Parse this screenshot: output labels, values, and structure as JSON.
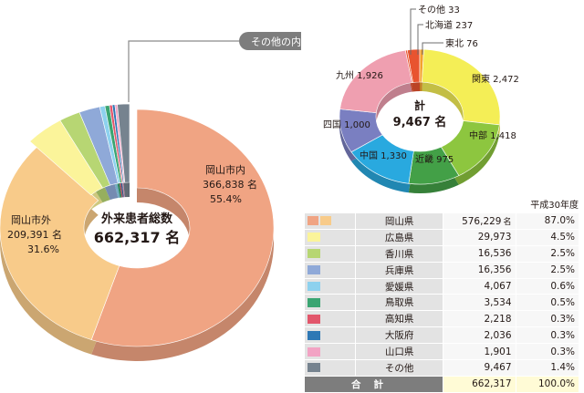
{
  "main_chart": {
    "center_title": "外来患者総数",
    "center_total": "662,317 名",
    "callout": "その他の内訳",
    "labels": [
      {
        "line1": "岡山市内",
        "line2": "366,838 名",
        "line3": "55.4%"
      },
      {
        "line1": "岡山市外",
        "line2": "209,391 名",
        "line3": "31.6%"
      }
    ]
  },
  "region_chart": {
    "center_title": "計",
    "center_total": "9,467 名",
    "labels": [
      "その他 33",
      "北海道 237",
      "東北 76",
      "関東 2,472",
      "中部 1,418",
      "近畿 975",
      "中国 1,330",
      "四国 1,000",
      "九州 1,926"
    ]
  },
  "table": {
    "year": "平成30年度",
    "rows": [
      {
        "name": "岡山県",
        "count": "576,229",
        "unit": "名",
        "pct": "87.0%"
      },
      {
        "name": "広島県",
        "count": "29,973",
        "unit": "",
        "pct": "4.5%"
      },
      {
        "name": "香川県",
        "count": "16,536",
        "unit": "",
        "pct": "2.5%"
      },
      {
        "name": "兵庫県",
        "count": "16,356",
        "unit": "",
        "pct": "2.5%"
      },
      {
        "name": "愛媛県",
        "count": "4,067",
        "unit": "",
        "pct": "0.6%"
      },
      {
        "name": "鳥取県",
        "count": "3,534",
        "unit": "",
        "pct": "0.5%"
      },
      {
        "name": "高知県",
        "count": "2,218",
        "unit": "",
        "pct": "0.3%"
      },
      {
        "name": "大阪府",
        "count": "2,036",
        "unit": "",
        "pct": "0.3%"
      },
      {
        "name": "山口県",
        "count": "1,901",
        "unit": "",
        "pct": "0.3%"
      },
      {
        "name": "その他",
        "count": "9,467",
        "unit": "",
        "pct": "1.4%"
      }
    ],
    "total_label": "合計",
    "total_count": "662,317",
    "total_pct": "100.0%"
  },
  "chart_data": [
    {
      "type": "pie",
      "title": "外来患者総数",
      "categories": [
        "岡山市内",
        "岡山市外",
        "広島県",
        "香川県",
        "兵庫県",
        "愛媛県",
        "鳥取県",
        "高知県",
        "大阪府",
        "山口県",
        "その他"
      ],
      "values": [
        366838,
        209391,
        29973,
        16536,
        16356,
        4067,
        3534,
        2218,
        2036,
        1901,
        9467
      ],
      "colors": [
        "#f0a483",
        "#f8cb8a",
        "#fbf49a",
        "#b7d673",
        "#8fa9d8",
        "#8dd1ee",
        "#3aa572",
        "#e2566b",
        "#2e78b5",
        "#f2a3c4",
        "#76838f"
      ],
      "legend": "none"
    },
    {
      "type": "pie",
      "title": "計",
      "categories": [
        "北海道",
        "東北",
        "関東",
        "中部",
        "近畿",
        "中国",
        "四国",
        "九州",
        "その他"
      ],
      "values": [
        237,
        76,
        2472,
        1418,
        975,
        1330,
        1000,
        1926,
        33
      ],
      "colors": [
        "#e8542f",
        "#f4a22d",
        "#f4ee56",
        "#8dc63f",
        "#43a047",
        "#29a9df",
        "#7a7fc1",
        "#ef9fb0",
        "#e8542f"
      ],
      "legend": "none"
    }
  ],
  "colors": {
    "outside_okayama": "#f8cb8a",
    "okayama_city": "#f0a483",
    "table_header_bg": "#e3e3e3",
    "total_row_bg": "#7d7d7d"
  }
}
